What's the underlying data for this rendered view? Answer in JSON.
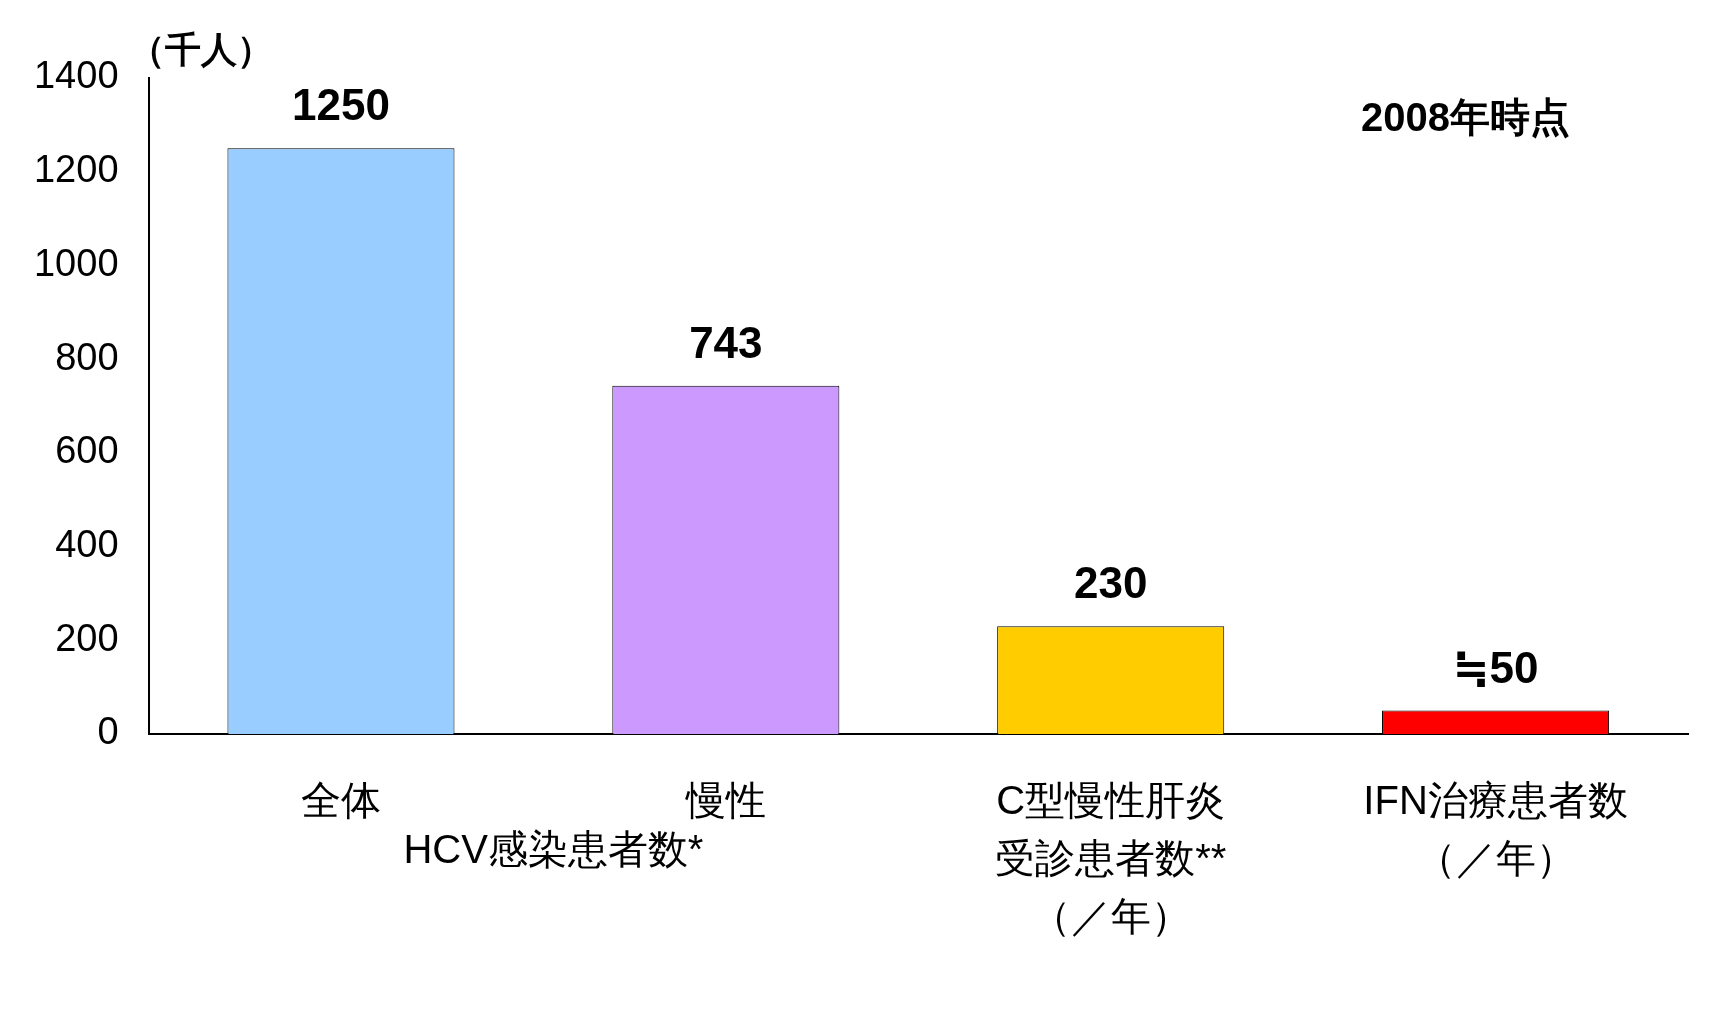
{
  "chart_data": {
    "type": "bar",
    "ylabel": "（千人）",
    "categories": [
      "全体",
      "慢性",
      "C型慢性肝炎受診患者数**（／年）",
      "IFN治療患者数（／年）"
    ],
    "values": [
      1250,
      743,
      230,
      50
    ],
    "colors": [
      "#99ccff",
      "#cc99ff",
      "#ffcc00",
      "#ff0000"
    ],
    "value_labels": [
      "1250",
      "743",
      "230",
      "≒50"
    ],
    "ylim": [
      0,
      1400
    ],
    "yticks": [
      0,
      200,
      400,
      600,
      800,
      1000,
      1200,
      1400
    ],
    "grid": false,
    "legend": false,
    "annotations": [
      "2008年時点",
      "HCV感染患者数*"
    ]
  }
}
